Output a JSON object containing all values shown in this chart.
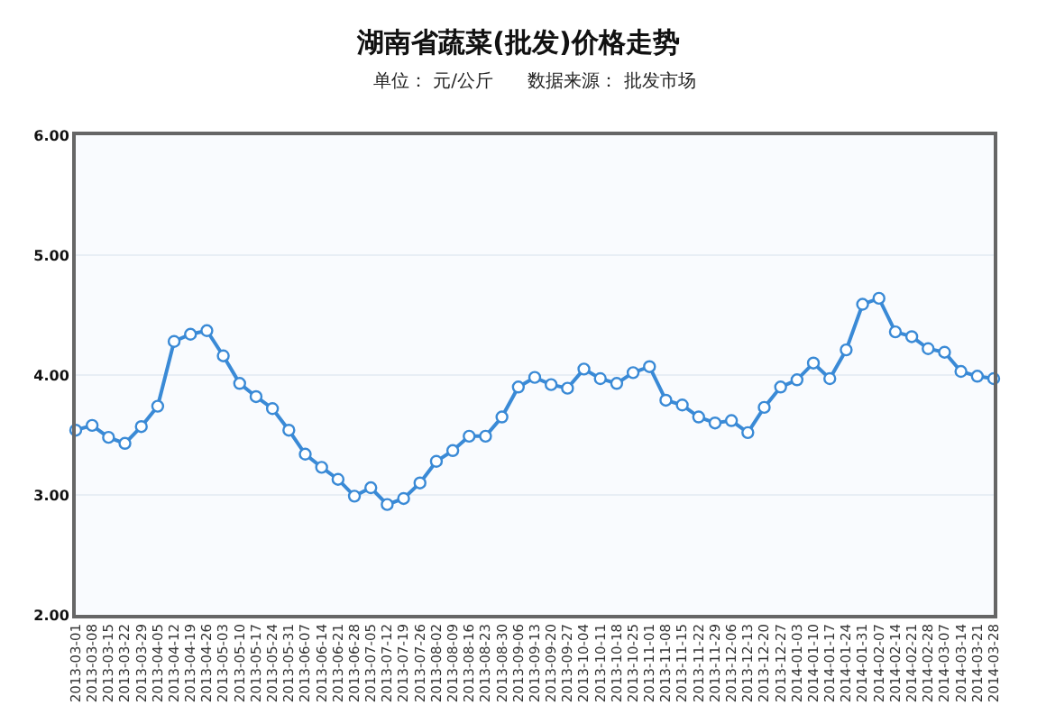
{
  "chart_data": {
    "type": "line",
    "title": "湖南省蔬菜(批发)价格走势",
    "subtitle": "单位： 元/公斤      数据来源： 批发市场",
    "categories": [
      "2013-03-01",
      "2013-03-08",
      "2013-03-15",
      "2013-03-22",
      "2013-03-29",
      "2013-04-05",
      "2013-04-12",
      "2013-04-19",
      "2013-04-26",
      "2013-05-03",
      "2013-05-10",
      "2013-05-17",
      "2013-05-24",
      "2013-05-31",
      "2013-06-07",
      "2013-06-14",
      "2013-06-21",
      "2013-06-28",
      "2013-07-05",
      "2013-07-12",
      "2013-07-19",
      "2013-07-26",
      "2013-08-02",
      "2013-08-09",
      "2013-08-16",
      "2013-08-23",
      "2013-08-30",
      "2013-09-06",
      "2013-09-13",
      "2013-09-20",
      "2013-09-27",
      "2013-10-04",
      "2013-10-11",
      "2013-10-18",
      "2013-10-25",
      "2013-11-01",
      "2013-11-08",
      "2013-11-15",
      "2013-11-22",
      "2013-11-29",
      "2013-12-06",
      "2013-12-13",
      "2013-12-20",
      "2013-12-27",
      "2014-01-03",
      "2014-01-10",
      "2014-01-17",
      "2014-01-24",
      "2014-01-31",
      "2014-02-07",
      "2014-02-14",
      "2014-02-21",
      "2014-02-28",
      "2014-03-07",
      "2014-03-14",
      "2014-03-21",
      "2014-03-28"
    ],
    "series": [
      {
        "color": "#3a8ad6",
        "values": [
          3.54,
          3.58,
          3.48,
          3.43,
          3.57,
          3.74,
          4.28,
          4.34,
          4.37,
          4.16,
          3.93,
          3.82,
          3.72,
          3.54,
          3.34,
          3.23,
          3.13,
          2.99,
          3.06,
          2.92,
          2.97,
          3.1,
          3.28,
          3.37,
          3.49,
          3.49,
          3.65,
          3.9,
          3.98,
          3.92,
          3.89,
          4.05,
          3.97,
          3.93,
          4.02,
          4.07,
          3.79,
          3.75,
          3.65,
          3.6,
          3.62,
          3.52,
          3.73,
          3.9,
          3.96,
          4.1,
          3.97,
          4.21,
          4.59,
          4.64,
          4.36,
          4.32,
          4.22,
          4.19,
          4.03,
          3.99,
          3.97
        ]
      }
    ],
    "ylim": [
      2,
      6
    ],
    "yticks": [
      {
        "value": 2,
        "label": "2.00"
      },
      {
        "value": 3,
        "label": "3.00"
      },
      {
        "value": 4,
        "label": "4.00"
      },
      {
        "value": 5,
        "label": "5.00"
      },
      {
        "value": 6,
        "label": "6.00"
      }
    ],
    "grid": "y",
    "marker": "circle",
    "line_style": "solid"
  }
}
